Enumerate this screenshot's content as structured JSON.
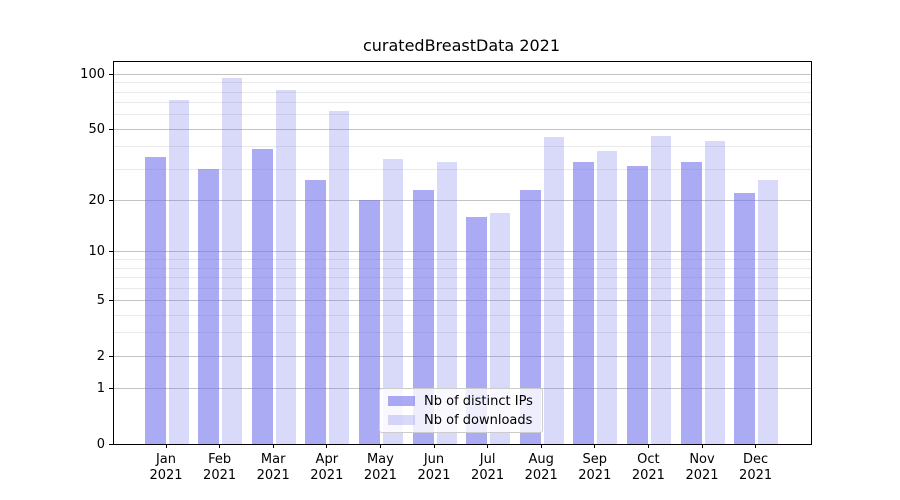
{
  "chart_data": {
    "type": "bar",
    "title": "curatedBreastData 2021",
    "xlabel": "",
    "ylabel": "",
    "year": "2021",
    "categories": [
      "Jan",
      "Feb",
      "Mar",
      "Apr",
      "May",
      "Jun",
      "Jul",
      "Aug",
      "Sep",
      "Oct",
      "Nov",
      "Dec"
    ],
    "series": [
      {
        "name": "Nb of distinct IPs",
        "alpha": 0.6,
        "values": [
          35,
          30,
          39,
          26,
          20,
          23,
          16,
          23,
          33,
          31,
          33,
          22
        ]
      },
      {
        "name": "Nb of downloads",
        "alpha": 0.27,
        "values": [
          72,
          96,
          82,
          63,
          34,
          33,
          17,
          45,
          38,
          46,
          43,
          26
        ]
      }
    ],
    "bar_base_color": "#7373eb",
    "yscale": "log1p",
    "ylim": [
      0,
      117
    ],
    "yticks": [
      0,
      1,
      2,
      5,
      10,
      20,
      50,
      100
    ],
    "minor_yticks": [
      3,
      4,
      6,
      7,
      8,
      9,
      30,
      40,
      60,
      70,
      80,
      90
    ],
    "grid": "horizontal",
    "legend_position": "lower-center"
  }
}
